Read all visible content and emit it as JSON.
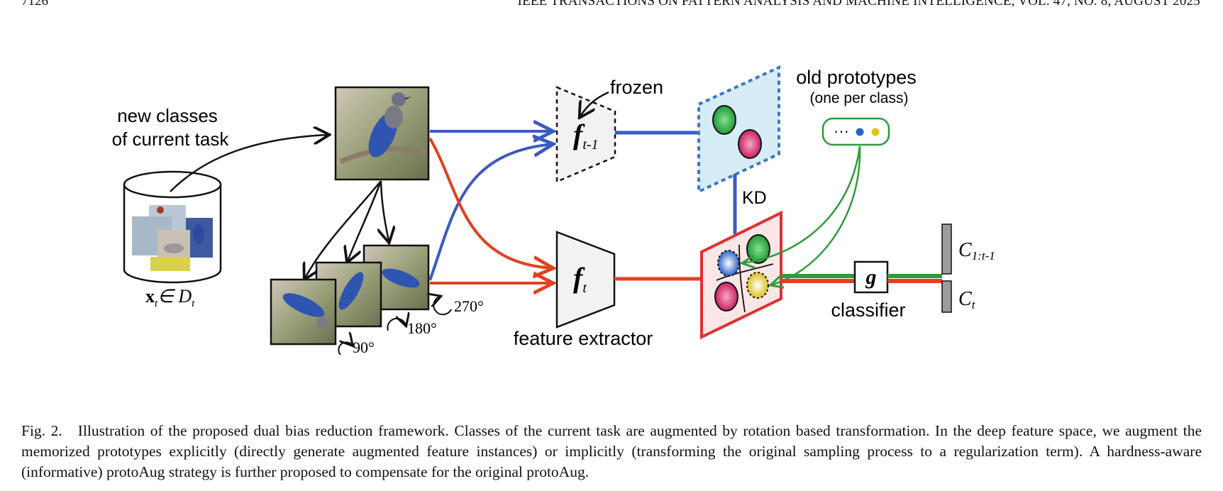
{
  "header": {
    "page_number": "7126",
    "journal": "IEEE TRANSACTIONS ON PATTERN ANALYSIS AND MACHINE INTELLIGENCE, VOL. 47, NO. 8, AUGUST 2025"
  },
  "figure": {
    "new_classes_line1": "new classes",
    "new_classes_line2": "of current task",
    "dataset_label": "x",
    "dataset_sub": "t",
    "dataset_in": "∈ D",
    "dataset_in_sub": "t",
    "frozen": "frozen",
    "f_old": "f",
    "f_old_sub": "t-1",
    "f_new": "f",
    "f_new_sub": "t",
    "feature_extractor": "feature extractor",
    "old_prototypes": "old prototypes",
    "one_per_class": "(one per class)",
    "kd": "KD",
    "g": "g",
    "classifier": "classifier",
    "c_old": "C",
    "c_old_sub": "1:t-1",
    "c_new": "C",
    "c_new_sub": "t",
    "rot_90": "90°",
    "rot_180": "180°",
    "rot_270": "270°",
    "proto_dots": "···",
    "colors": {
      "blue_arrow": "#3a5bbf",
      "red_arrow": "#e2401f",
      "green_arrow": "#2e9a3c",
      "old_space_fill": "#d6ecf6",
      "new_space_fill": "#fbe6e6",
      "new_space_border": "#e03030"
    }
  },
  "caption": {
    "label": "Fig. 2.",
    "text": "Illustration of the proposed dual bias reduction framework. Classes of the current task are augmented by rotation based transformation. In the deep feature space, we augment the memorized prototypes explicitly (directly generate augmented feature instances) or implicitly (transforming the original sampling process to a regularization term). A hardness-aware (informative) protoAug strategy is further proposed to compensate for the original protoAug."
  }
}
